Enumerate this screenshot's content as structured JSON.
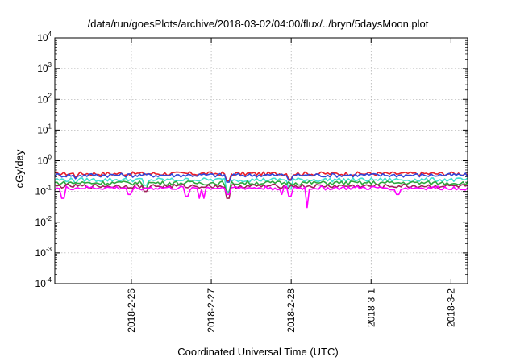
{
  "chart_data": {
    "type": "line",
    "title": "/data/run/goesPlots/archive/2018-03-02/04:00/flux/../bryn/5daysMoon.plot",
    "xlabel": "Coordinated Universal Time (UTC)",
    "ylabel": "cGy/day",
    "yscale": "log",
    "ylim": [
      0.0001,
      10000
    ],
    "y_ticks": [
      {
        "value": 0.0001,
        "base": "10",
        "exp": "-4"
      },
      {
        "value": 0.001,
        "base": "10",
        "exp": "-3"
      },
      {
        "value": 0.01,
        "base": "10",
        "exp": "-2"
      },
      {
        "value": 0.1,
        "base": "10",
        "exp": "-1"
      },
      {
        "value": 1,
        "base": "10",
        "exp": "0"
      },
      {
        "value": 10,
        "base": "10",
        "exp": "1"
      },
      {
        "value": 100,
        "base": "10",
        "exp": "2"
      },
      {
        "value": 1000,
        "base": "10",
        "exp": "3"
      },
      {
        "value": 10000,
        "base": "10",
        "exp": "4"
      }
    ],
    "x_ticks": [
      "2018-2-26",
      "2018-2-27",
      "2018-2-28",
      "2018-3-1",
      "2018-3-2"
    ],
    "x_start": "2018-02-25 01:00",
    "x_end": "2018-03-02 05:00",
    "grid": true,
    "series": [
      {
        "color": "#e8202a",
        "level": 0.38,
        "dips": [
          [
            0.05,
            0.28
          ],
          [
            0.42,
            0.22
          ],
          [
            0.57,
            0.25
          ]
        ]
      },
      {
        "color": "#3046d8",
        "level": 0.34,
        "dips": [
          [
            0.05,
            0.26
          ],
          [
            0.42,
            0.2
          ],
          [
            0.57,
            0.23
          ]
        ]
      },
      {
        "color": "#40e0d0",
        "level": 0.24,
        "dips": [
          [
            0.05,
            0.18
          ],
          [
            0.22,
            0.16
          ],
          [
            0.42,
            0.1
          ],
          [
            0.57,
            0.12
          ]
        ]
      },
      {
        "color": "#2ea83c",
        "level": 0.19,
        "dips": [
          [
            0.22,
            0.13
          ],
          [
            0.42,
            0.09
          ]
        ]
      },
      {
        "color": "#a0205a",
        "level": 0.15,
        "dips": [
          [
            0.22,
            0.1
          ],
          [
            0.42,
            0.06
          ]
        ]
      },
      {
        "color": "#ff00ff",
        "level": 0.13,
        "dips": [
          [
            0.02,
            0.06
          ],
          [
            0.18,
            0.08
          ],
          [
            0.32,
            0.07
          ],
          [
            0.35,
            0.06
          ],
          [
            0.36,
            0.06
          ],
          [
            0.42,
            0.08
          ],
          [
            0.55,
            0.08
          ],
          [
            0.57,
            0.07
          ],
          [
            0.61,
            0.03
          ],
          [
            0.83,
            0.08
          ]
        ]
      }
    ]
  }
}
